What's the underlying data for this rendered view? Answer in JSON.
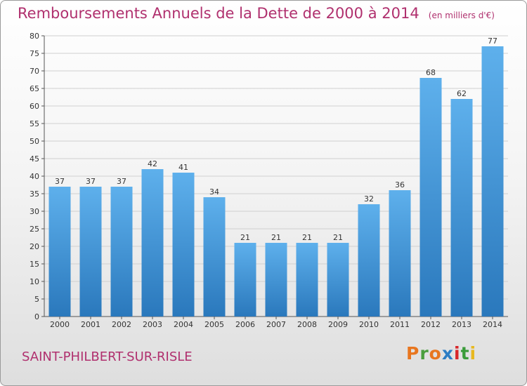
{
  "chart_data": {
    "type": "bar",
    "title": "Remboursements Annuels de la Dette de 2000 à 2014",
    "unit_note": "(en milliers d'€)",
    "categories": [
      "2000",
      "2001",
      "2002",
      "2003",
      "2004",
      "2005",
      "2006",
      "2007",
      "2008",
      "2009",
      "2010",
      "2011",
      "2012",
      "2013",
      "2014"
    ],
    "values": [
      37,
      37,
      37,
      42,
      41,
      34,
      21,
      21,
      21,
      21,
      32,
      36,
      68,
      62,
      77
    ],
    "ylim": [
      0,
      80
    ],
    "yticks": [
      0,
      5,
      10,
      15,
      20,
      25,
      30,
      35,
      40,
      45,
      50,
      55,
      60,
      65,
      70,
      75,
      80
    ],
    "grid": true,
    "bar_color": "#3a8fd4"
  },
  "footer": {
    "city": "SAINT-PHILBERT-SUR-RISLE",
    "logo_text": "Proxiti",
    "logo_colors": [
      "#e8761f",
      "#4a9e3d",
      "#e8761f",
      "#2c7dc4",
      "#d7262a",
      "#3a9c3a",
      "#e8b81f"
    ]
  }
}
